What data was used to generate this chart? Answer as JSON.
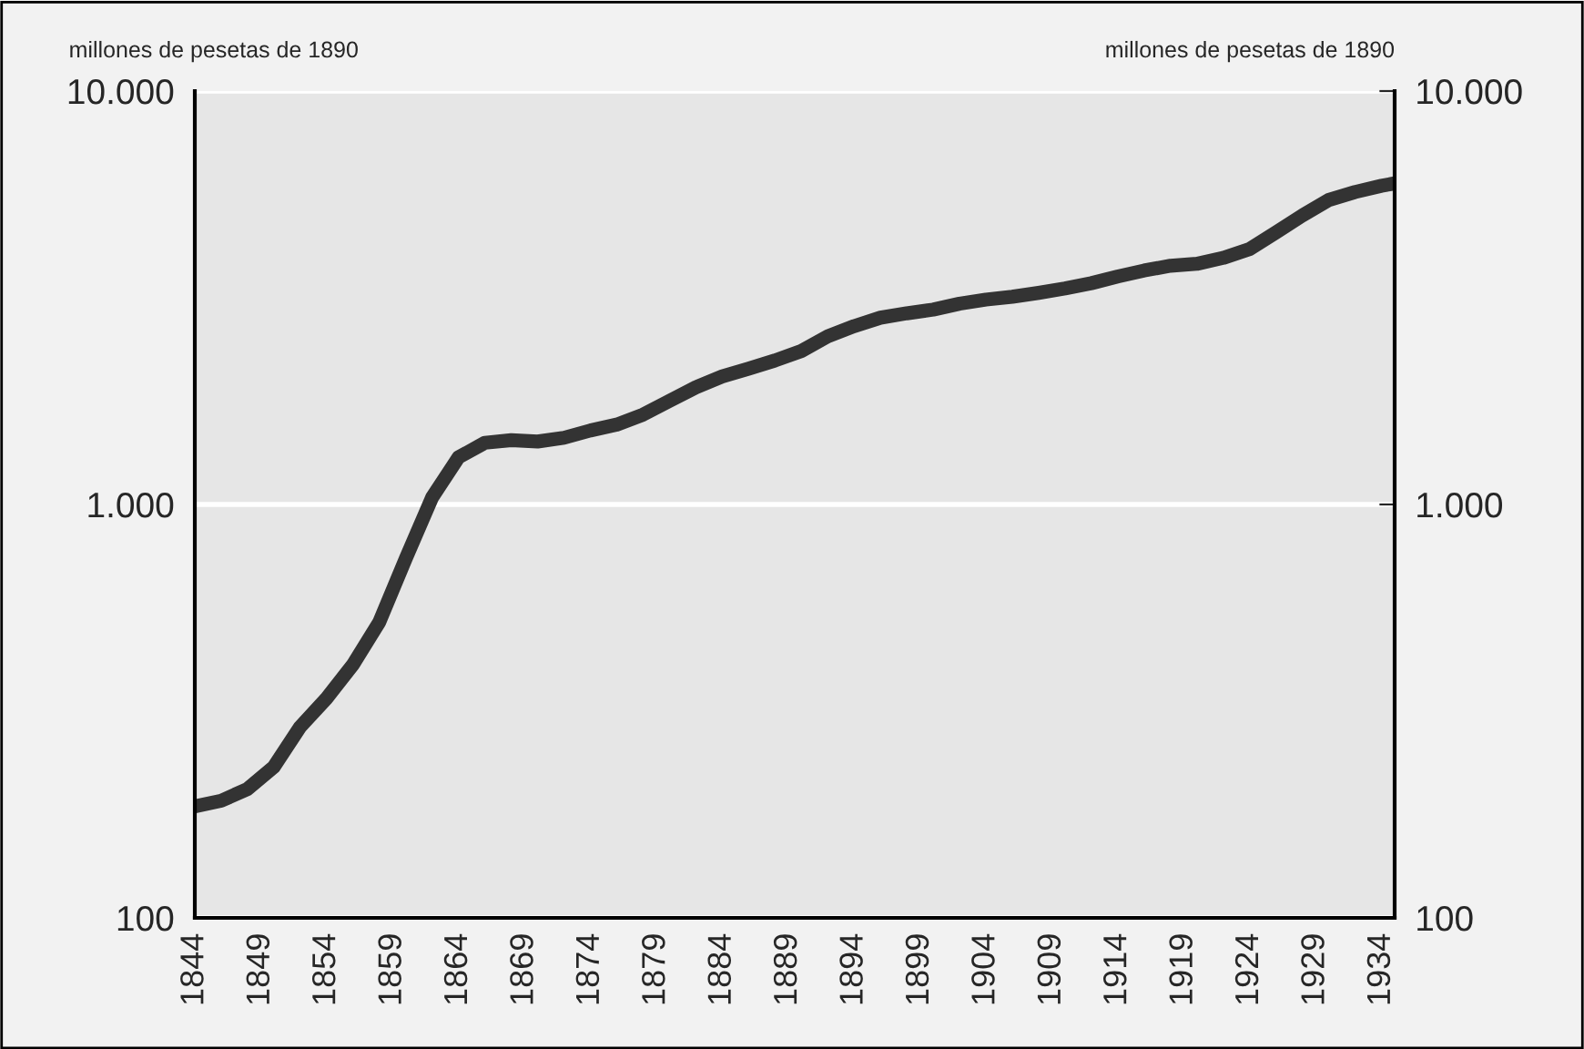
{
  "chart_data": {
    "type": "line",
    "ylabel": "millones de pesetas de 1890",
    "y2label": "millones de pesetas de 1890",
    "x": [
      1844,
      1846,
      1848,
      1850,
      1852,
      1854,
      1856,
      1858,
      1860,
      1862,
      1864,
      1866,
      1868,
      1870,
      1872,
      1874,
      1876,
      1878,
      1880,
      1882,
      1884,
      1886,
      1888,
      1890,
      1892,
      1894,
      1896,
      1898,
      1900,
      1902,
      1904,
      1906,
      1908,
      1910,
      1912,
      1914,
      1916,
      1918,
      1920,
      1922,
      1924,
      1926,
      1928,
      1930,
      1932,
      1934,
      1935
    ],
    "series": [
      {
        "color": "#333333",
        "values": [
          186,
          192,
          205,
          232,
          290,
          340,
          410,
          520,
          740,
          1040,
          1300,
          1410,
          1430,
          1420,
          1450,
          1510,
          1560,
          1650,
          1780,
          1920,
          2040,
          2130,
          2230,
          2350,
          2550,
          2700,
          2830,
          2900,
          2960,
          3060,
          3130,
          3180,
          3250,
          3330,
          3430,
          3560,
          3680,
          3780,
          3820,
          3950,
          4150,
          4550,
          5000,
          5450,
          5700,
          5900,
          5980
        ]
      }
    ],
    "log": "y",
    "xlim": [
      1844,
      1935
    ],
    "xticks": [
      1844,
      1849,
      1854,
      1859,
      1864,
      1869,
      1874,
      1879,
      1884,
      1889,
      1894,
      1899,
      1904,
      1909,
      1914,
      1919,
      1924,
      1929,
      1934
    ],
    "ylim": [
      100,
      10000
    ],
    "yticks": [
      {
        "value": 100,
        "label": "100"
      },
      {
        "value": 1000,
        "label": "1.000"
      },
      {
        "value": 10000,
        "label": "10.000"
      }
    ],
    "grid": "y",
    "line_style": "solid",
    "marker": "none",
    "legend": false
  }
}
